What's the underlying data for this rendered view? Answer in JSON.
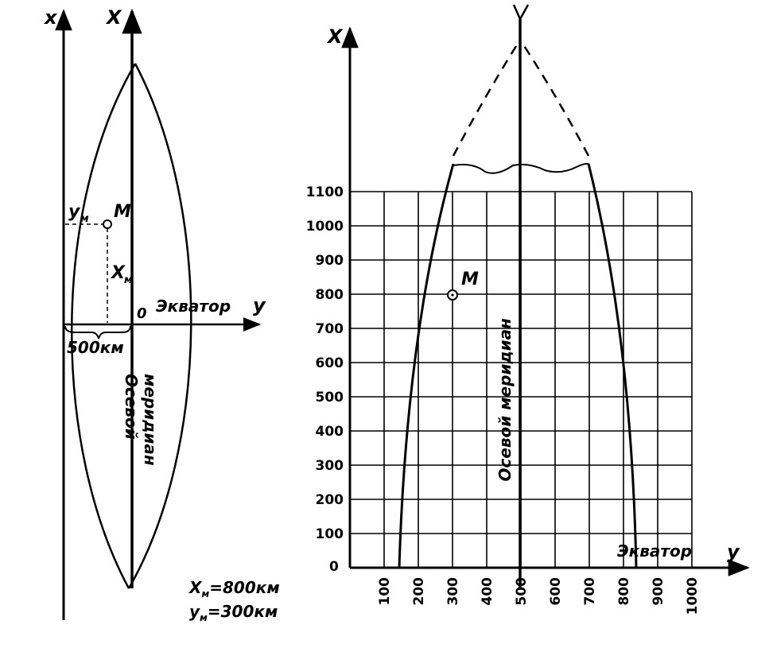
{
  "left": {
    "axis_x_outer": "x",
    "axis_x": "X",
    "axis_y": "y",
    "origin": "0",
    "equator": "Экватор",
    "point": "M",
    "ym_label": "y",
    "xm_label": "X",
    "sub": "м",
    "distance": "500км",
    "meridian_line1": "Осевой",
    "meridian_line2": "меридиан",
    "xm_eq": "=800км",
    "ym_eq": "=300км"
  },
  "right": {
    "axis_x": "X",
    "axis_y": "y",
    "origin": "0",
    "equator": "Экватор",
    "point": "M",
    "meridian": "Осевой меридиан",
    "y_ticks": [
      "100",
      "200",
      "300",
      "400",
      "500",
      "600",
      "700",
      "800",
      "900",
      "1000",
      "1100"
    ],
    "x_ticks": [
      "100",
      "200",
      "300",
      "400",
      "500",
      "600",
      "700",
      "800",
      "900",
      "1000"
    ]
  },
  "colors": {
    "ink": "#000000",
    "paper": "#ffffff"
  }
}
